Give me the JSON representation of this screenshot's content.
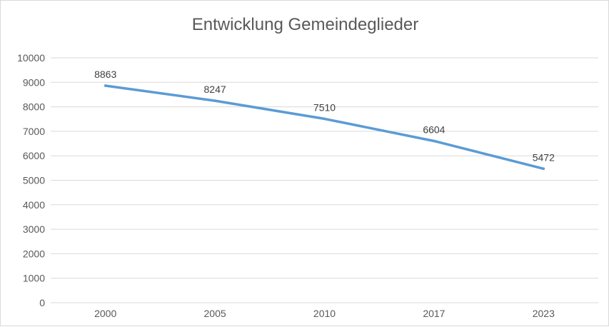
{
  "chart_data": {
    "type": "line",
    "title": "Entwicklung Gemeindeglieder",
    "categories": [
      "2000",
      "2005",
      "2010",
      "2017",
      "2023"
    ],
    "series": [
      {
        "values": [
          8863,
          8247,
          7510,
          6604,
          5472
        ],
        "color": "#5b9bd5"
      }
    ],
    "ylim": [
      0,
      10000
    ],
    "yticks": [
      0,
      1000,
      2000,
      3000,
      4000,
      5000,
      6000,
      7000,
      8000,
      9000,
      10000
    ],
    "grid": true,
    "legend": "none",
    "data_labels": true,
    "gridline_color": "#d9d9d9"
  }
}
